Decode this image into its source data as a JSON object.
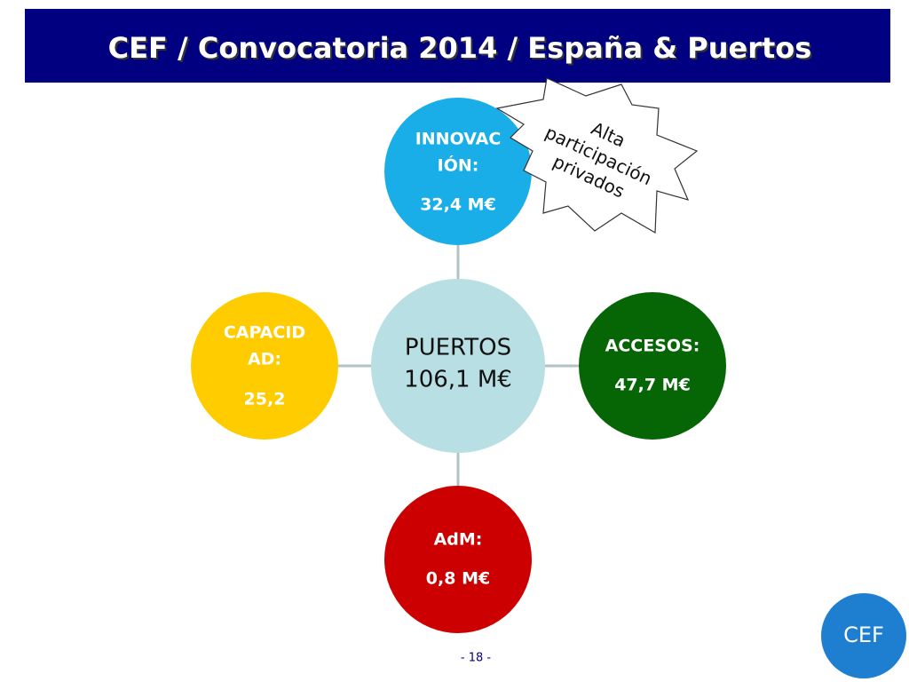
{
  "header": {
    "title": "CEF / Convocatoria 2014 / España & Puertos"
  },
  "center": {
    "lines": [
      "PUERTOS",
      "106,1 M€"
    ]
  },
  "nodes": [
    {
      "label": [
        "INNOVAC",
        "IÓN:"
      ],
      "value": "32,4 M€"
    },
    {
      "label": [
        "ACCESOS:"
      ],
      "value": "47,7 M€"
    },
    {
      "label": [
        "AdM:"
      ],
      "value": "0,8 M€"
    },
    {
      "label": [
        "CAPACID",
        "AD:"
      ],
      "value": "25,2"
    }
  ],
  "callout": {
    "lines": [
      "Alta",
      "participación",
      "privados"
    ]
  },
  "footer": {
    "page": "- 18 -",
    "logo": "CEF"
  }
}
